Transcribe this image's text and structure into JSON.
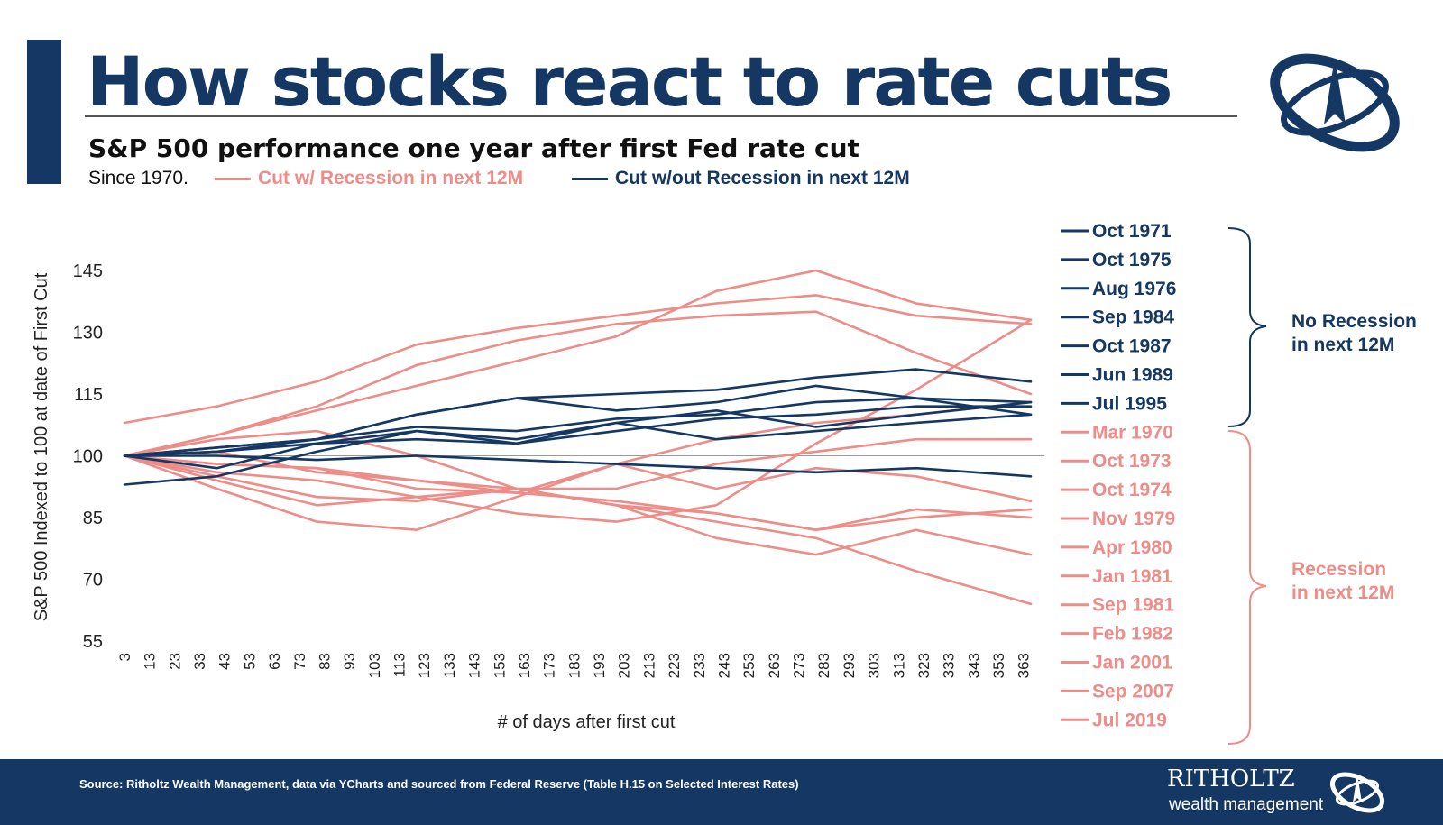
{
  "header": {
    "title": "How stocks react to rate cuts",
    "subtitle": "S&P 500 performance one year after first Fed rate cut",
    "since": "Since 1970.",
    "legend": [
      {
        "label": "Cut w/ Recession in next 12M",
        "color": "#ee8c88"
      },
      {
        "label": "Cut w/out Recession in next 12M",
        "color": "#143863"
      }
    ]
  },
  "colors": {
    "navy": "#143863",
    "salmon": "#ee8c88"
  },
  "groups": {
    "no_recession_label_1": "No Recession",
    "no_recession_label_2": "in next 12M",
    "recession_label_1": "Recession",
    "recession_label_2": "in next 12M"
  },
  "footer": {
    "source": "Source: Ritholtz Wealth Management, data via YCharts and sourced from Federal Reserve (Table H.15 on Selected Interest Rates)",
    "brand": "RITHOLTZ",
    "brand_sub": "wealth management"
  },
  "chart_data": {
    "type": "line",
    "title": "S&P 500 performance one year after first Fed rate cut",
    "xlabel": "# of days after first cut",
    "ylabel": "S&P 500 Indexed to 100 at date of First Cut",
    "x_ticks": [
      3,
      13,
      23,
      33,
      43,
      53,
      63,
      73,
      83,
      93,
      103,
      113,
      123,
      133,
      143,
      153,
      163,
      173,
      183,
      193,
      203,
      213,
      223,
      233,
      243,
      253,
      263,
      273,
      283,
      293,
      303,
      313,
      323,
      333,
      343,
      353,
      363
    ],
    "xlim": [
      3,
      366
    ],
    "y_ticks": [
      55,
      70,
      85,
      100,
      115,
      130,
      145
    ],
    "ylim": [
      55,
      145
    ],
    "reference_line": 100,
    "legend_position": "right",
    "series": [
      {
        "name": "Oct 1971",
        "group": "no_recession",
        "color": "#143863",
        "x": [
          3,
          40,
          80,
          120,
          160,
          200,
          240,
          280,
          320,
          366
        ],
        "y": [
          100,
          97,
          103,
          106,
          103,
          108,
          111,
          107,
          110,
          113
        ]
      },
      {
        "name": "Oct 1975",
        "group": "no_recession",
        "color": "#143863",
        "x": [
          3,
          40,
          80,
          120,
          160,
          200,
          240,
          280,
          320,
          366
        ],
        "y": [
          100,
          101,
          104,
          110,
          114,
          115,
          116,
          119,
          121,
          118
        ]
      },
      {
        "name": "Aug 1976",
        "group": "no_recession",
        "color": "#143863",
        "x": [
          3,
          40,
          80,
          120,
          160,
          200,
          240,
          280,
          320,
          366
        ],
        "y": [
          100,
          100,
          99,
          100,
          99,
          98,
          97,
          96,
          97,
          95
        ]
      },
      {
        "name": "Sep 1984",
        "group": "no_recession",
        "color": "#143863",
        "x": [
          3,
          40,
          80,
          120,
          160,
          200,
          240,
          280,
          320,
          366
        ],
        "y": [
          100,
          101,
          103,
          104,
          103,
          106,
          109,
          110,
          112,
          112
        ]
      },
      {
        "name": "Oct 1987",
        "group": "no_recession",
        "color": "#143863",
        "x": [
          3,
          40,
          80,
          120,
          160,
          200,
          240,
          280,
          320,
          366
        ],
        "y": [
          93,
          95,
          101,
          106,
          104,
          108,
          104,
          106,
          108,
          110
        ]
      },
      {
        "name": "Jun 1989",
        "group": "no_recession",
        "color": "#143863",
        "x": [
          3,
          40,
          80,
          120,
          160,
          200,
          240,
          280,
          320,
          366
        ],
        "y": [
          100,
          102,
          104,
          110,
          114,
          111,
          113,
          117,
          114,
          110
        ]
      },
      {
        "name": "Jul 1995",
        "group": "no_recession",
        "color": "#143863",
        "x": [
          3,
          40,
          80,
          120,
          160,
          200,
          240,
          280,
          320,
          366
        ],
        "y": [
          100,
          102,
          104,
          107,
          106,
          109,
          110,
          113,
          114,
          113
        ]
      },
      {
        "name": "Mar 1970",
        "group": "recession",
        "color": "#ee8c88",
        "x": [
          3,
          40,
          80,
          120,
          160,
          200,
          240,
          280,
          320,
          366
        ],
        "y": [
          100,
          92,
          84,
          82,
          90,
          98,
          104,
          108,
          110,
          113
        ]
      },
      {
        "name": "Oct 1973",
        "group": "recession",
        "color": "#ee8c88",
        "x": [
          3,
          40,
          80,
          120,
          160,
          200,
          240,
          280,
          320,
          366
        ],
        "y": [
          100,
          95,
          90,
          89,
          92,
          88,
          84,
          80,
          72,
          64
        ]
      },
      {
        "name": "Oct 1974",
        "group": "recession",
        "color": "#ee8c88",
        "x": [
          3,
          40,
          80,
          120,
          160,
          200,
          240,
          280,
          320,
          366
        ],
        "y": [
          108,
          112,
          118,
          127,
          131,
          134,
          137,
          139,
          134,
          132
        ]
      },
      {
        "name": "Nov 1979",
        "group": "recession",
        "color": "#ee8c88",
        "x": [
          3,
          40,
          80,
          120,
          160,
          200,
          240,
          280,
          320,
          366
        ],
        "y": [
          100,
          104,
          106,
          100,
          92,
          92,
          98,
          101,
          104,
          104
        ]
      },
      {
        "name": "Apr 1980",
        "group": "recession",
        "color": "#ee8c88",
        "x": [
          3,
          40,
          80,
          120,
          160,
          200,
          240,
          280,
          320,
          366
        ],
        "y": [
          100,
          105,
          111,
          117,
          123,
          129,
          140,
          145,
          137,
          133
        ]
      },
      {
        "name": "Jan 1981",
        "group": "recession",
        "color": "#ee8c88",
        "x": [
          3,
          40,
          80,
          120,
          160,
          200,
          240,
          280,
          320,
          366
        ],
        "y": [
          100,
          98,
          97,
          94,
          92,
          88,
          86,
          82,
          85,
          87
        ]
      },
      {
        "name": "Sep 1981",
        "group": "recession",
        "color": "#ee8c88",
        "x": [
          3,
          40,
          80,
          120,
          160,
          200,
          240,
          280,
          320,
          366
        ],
        "y": [
          100,
          98,
          97,
          92,
          91,
          98,
          92,
          97,
          95,
          89
        ]
      },
      {
        "name": "Feb 1982",
        "group": "recession",
        "color": "#ee8c88",
        "x": [
          3,
          40,
          80,
          120,
          160,
          200,
          240,
          280,
          320,
          366
        ],
        "y": [
          100,
          96,
          94,
          90,
          86,
          84,
          88,
          103,
          116,
          133
        ]
      },
      {
        "name": "Jan 2001",
        "group": "recession",
        "color": "#ee8c88",
        "x": [
          3,
          40,
          80,
          120,
          160,
          200,
          240,
          280,
          320,
          366
        ],
        "y": [
          100,
          94,
          88,
          90,
          92,
          88,
          80,
          76,
          82,
          76
        ]
      },
      {
        "name": "Sep 2007",
        "group": "recession",
        "color": "#ee8c88",
        "x": [
          3,
          40,
          80,
          120,
          160,
          200,
          240,
          280,
          320,
          366
        ],
        "y": [
          100,
          101,
          96,
          94,
          91,
          89,
          86,
          82,
          87,
          85
        ]
      },
      {
        "name": "Jul 2019",
        "group": "recession",
        "color": "#ee8c88",
        "x": [
          3,
          40,
          80,
          120,
          160,
          200,
          240,
          280,
          320,
          366
        ],
        "y": [
          100,
          105,
          112,
          122,
          128,
          132,
          134,
          135,
          125,
          115
        ]
      }
    ]
  }
}
